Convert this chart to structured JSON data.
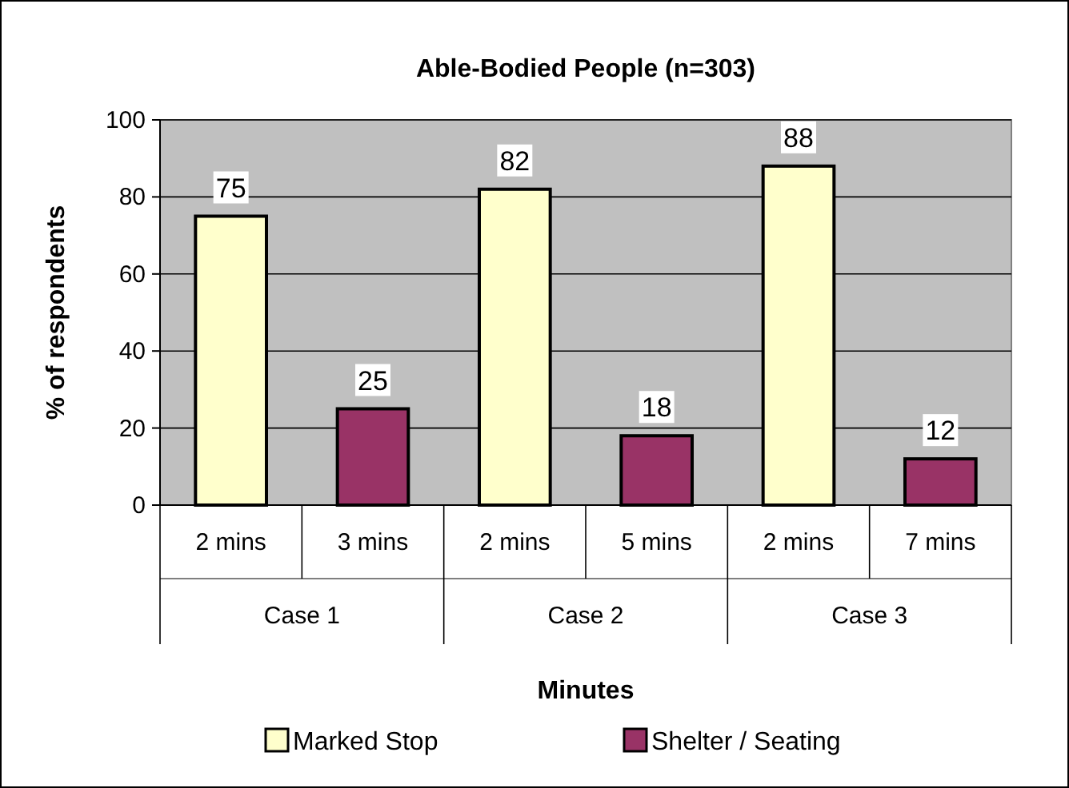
{
  "chart_data": {
    "type": "bar",
    "title": "Able-Bodied People (n=303)",
    "xlabel": "Minutes",
    "ylabel": "% of respondents",
    "categories": [
      "2 mins",
      "3 mins",
      "2 mins",
      "5 mins",
      "2 mins",
      "7 mins"
    ],
    "series": [
      {
        "name": "Marked Stop",
        "color": "#ffffcc",
        "values": [
          75,
          null,
          82,
          null,
          88,
          null
        ]
      },
      {
        "name": "Shelter / Seating",
        "color": "#993366",
        "values": [
          null,
          25,
          null,
          18,
          null,
          12
        ]
      }
    ],
    "annotations": [
      "Case 1",
      "Case 2",
      "Case 3"
    ],
    "ylim": [
      0,
      100
    ],
    "yticks": [
      0,
      20,
      40,
      60,
      80,
      100
    ],
    "grid": "y",
    "data_labels": true,
    "legend": "bottom"
  }
}
